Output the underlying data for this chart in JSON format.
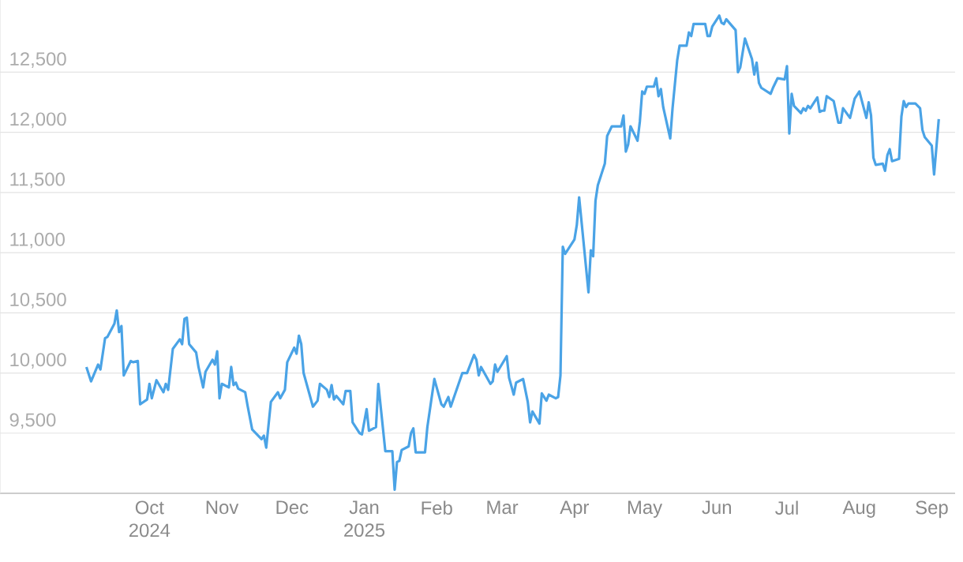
{
  "chart_data": {
    "type": "line",
    "color": "#4aa3e6",
    "grid": "y",
    "xlim": [
      "2024-07-29",
      "2025-09-11"
    ],
    "ylim": [
      9000,
      13100
    ],
    "yticks": [
      {
        "value": 9500,
        "label": "9,500"
      },
      {
        "value": 10000,
        "label": "10,000"
      },
      {
        "value": 10500,
        "label": "10,500"
      },
      {
        "value": 11000,
        "label": "11,000"
      },
      {
        "value": 11500,
        "label": "11,500"
      },
      {
        "value": 12000,
        "label": "12,000"
      },
      {
        "value": 12500,
        "label": "12,500"
      }
    ],
    "xticks": [
      {
        "value": "2024-10-01",
        "label": "Oct 2024"
      },
      {
        "value": "2024-11-01",
        "label": "Nov"
      },
      {
        "value": "2024-12-01",
        "label": "Dec"
      },
      {
        "value": "2025-01-01",
        "label": "Jan 2025"
      },
      {
        "value": "2025-02-01",
        "label": "Feb"
      },
      {
        "value": "2025-03-01",
        "label": "Mar"
      },
      {
        "value": "2025-04-01",
        "label": "Apr"
      },
      {
        "value": "2025-05-01",
        "label": "May"
      },
      {
        "value": "2025-06-01",
        "label": "Jun"
      },
      {
        "value": "2025-07-01",
        "label": "Jul"
      },
      {
        "value": "2025-08-01",
        "label": "Aug"
      },
      {
        "value": "2025-09-01",
        "label": "Sep"
      }
    ],
    "x": [
      "2024-09-04",
      "2024-09-06",
      "2024-09-09",
      "2024-09-10",
      "2024-09-12",
      "2024-09-13",
      "2024-09-16",
      "2024-09-17",
      "2024-09-18",
      "2024-09-19",
      "2024-09-20",
      "2024-09-23",
      "2024-09-24",
      "2024-09-26",
      "2024-09-27",
      "2024-09-30",
      "2024-10-01",
      "2024-10-02",
      "2024-10-04",
      "2024-10-07",
      "2024-10-08",
      "2024-10-09",
      "2024-10-11",
      "2024-10-14",
      "2024-10-15",
      "2024-10-16",
      "2024-10-17",
      "2024-10-18",
      "2024-10-21",
      "2024-10-22",
      "2024-10-24",
      "2024-10-25",
      "2024-10-28",
      "2024-10-29",
      "2024-10-30",
      "2024-10-31",
      "2024-11-01",
      "2024-11-04",
      "2024-11-05",
      "2024-11-06",
      "2024-11-07",
      "2024-11-08",
      "2024-11-11",
      "2024-11-12",
      "2024-11-14",
      "2024-11-18",
      "2024-11-19",
      "2024-11-20",
      "2024-11-22",
      "2024-11-25",
      "2024-11-26",
      "2024-11-28",
      "2024-11-29",
      "2024-12-02",
      "2024-12-03",
      "2024-12-04",
      "2024-12-05",
      "2024-12-06",
      "2024-12-10",
      "2024-12-12",
      "2024-12-13",
      "2024-12-16",
      "2024-12-17",
      "2024-12-18",
      "2024-12-19",
      "2024-12-20",
      "2024-12-23",
      "2024-12-24",
      "2024-12-26",
      "2024-12-27",
      "2024-12-30",
      "2024-12-31",
      "2025-01-02",
      "2025-01-03",
      "2025-01-06",
      "2025-01-07",
      "2025-01-10",
      "2025-01-13",
      "2025-01-14",
      "2025-01-15",
      "2025-01-16",
      "2025-01-17",
      "2025-01-20",
      "2025-01-21",
      "2025-01-22",
      "2025-01-23",
      "2025-01-27",
      "2025-01-28",
      "2025-01-31",
      "2025-02-03",
      "2025-02-04",
      "2025-02-06",
      "2025-02-07",
      "2025-02-12",
      "2025-02-14",
      "2025-02-17",
      "2025-02-18",
      "2025-02-19",
      "2025-02-20",
      "2025-02-24",
      "2025-02-25",
      "2025-02-26",
      "2025-02-27",
      "2025-03-03",
      "2025-03-04",
      "2025-03-06",
      "2025-03-07",
      "2025-03-10",
      "2025-03-12",
      "2025-03-13",
      "2025-03-14",
      "2025-03-17",
      "2025-03-18",
      "2025-03-20",
      "2025-03-21",
      "2025-03-24",
      "2025-03-25",
      "2025-03-26",
      "2025-03-27",
      "2025-03-28",
      "2025-04-01",
      "2025-04-02",
      "2025-04-03",
      "2025-04-07",
      "2025-04-08",
      "2025-04-09",
      "2025-04-10",
      "2025-04-11",
      "2025-04-14",
      "2025-04-15",
      "2025-04-17",
      "2025-04-21",
      "2025-04-22",
      "2025-04-23",
      "2025-04-24",
      "2025-04-25",
      "2025-04-28",
      "2025-04-29",
      "2025-04-30",
      "2025-05-01",
      "2025-05-02",
      "2025-05-05",
      "2025-05-06",
      "2025-05-07",
      "2025-05-08",
      "2025-05-09",
      "2025-05-12",
      "2025-05-13",
      "2025-05-15",
      "2025-05-16",
      "2025-05-19",
      "2025-05-20",
      "2025-05-21",
      "2025-05-22",
      "2025-05-27",
      "2025-05-28",
      "2025-05-29",
      "2025-05-30",
      "2025-06-02",
      "2025-06-03",
      "2025-06-04",
      "2025-06-05",
      "2025-06-09",
      "2025-06-10",
      "2025-06-11",
      "2025-06-13",
      "2025-06-16",
      "2025-06-17",
      "2025-06-18",
      "2025-06-19",
      "2025-06-20",
      "2025-06-24",
      "2025-06-25",
      "2025-06-27",
      "2025-06-30",
      "2025-07-01",
      "2025-07-02",
      "2025-07-03",
      "2025-07-04",
      "2025-07-07",
      "2025-07-08",
      "2025-07-09",
      "2025-07-10",
      "2025-07-11",
      "2025-07-14",
      "2025-07-15",
      "2025-07-16",
      "2025-07-17",
      "2025-07-18",
      "2025-07-21",
      "2025-07-23",
      "2025-07-24",
      "2025-07-25",
      "2025-07-28",
      "2025-07-30",
      "2025-08-01",
      "2025-08-04",
      "2025-08-05",
      "2025-08-06",
      "2025-08-07",
      "2025-08-08",
      "2025-08-11",
      "2025-08-12",
      "2025-08-13",
      "2025-08-14",
      "2025-08-15",
      "2025-08-18",
      "2025-08-19",
      "2025-08-20",
      "2025-08-21",
      "2025-08-22",
      "2025-08-25",
      "2025-08-27",
      "2025-08-28",
      "2025-08-29",
      "2025-09-01",
      "2025-09-02",
      "2025-09-04"
    ],
    "values": [
      10050,
      9930,
      10070,
      10030,
      10290,
      10300,
      10410,
      10520,
      10340,
      10390,
      9980,
      10100,
      10090,
      10100,
      9740,
      9780,
      9910,
      9790,
      9940,
      9840,
      9910,
      9860,
      10200,
      10280,
      10240,
      10450,
      10460,
      10240,
      10170,
      10050,
      9880,
      10010,
      10110,
      10070,
      10180,
      9790,
      9910,
      9880,
      10050,
      9900,
      9920,
      9870,
      9840,
      9730,
      9530,
      9450,
      9480,
      9380,
      9760,
      9840,
      9790,
      9860,
      10090,
      10210,
      10160,
      10310,
      10240,
      10000,
      9720,
      9770,
      9910,
      9860,
      9800,
      9900,
      9780,
      9810,
      9740,
      9850,
      9850,
      9590,
      9500,
      9490,
      9700,
      9520,
      9550,
      9910,
      9350,
      9350,
      9030,
      9260,
      9270,
      9360,
      9390,
      9500,
      9540,
      9340,
      9340,
      9550,
      9950,
      9740,
      9720,
      9800,
      9720,
      10000,
      10000,
      10150,
      10110,
      9980,
      10050,
      9910,
      9930,
      10070,
      10010,
      10140,
      9960,
      9820,
      9920,
      9950,
      9760,
      9590,
      9680,
      9580,
      9830,
      9770,
      9820,
      9790,
      9800,
      9980,
      11050,
      10990,
      11110,
      11230,
      11460,
      10670,
      11020,
      10970,
      11430,
      11560,
      11740,
      11970,
      12050,
      12050,
      12140,
      11840,
      11900,
      12050,
      11930,
      12090,
      12340,
      12320,
      12380,
      12380,
      12450,
      12300,
      12360,
      12210,
      11950,
      12200,
      12600,
      12720,
      12720,
      12830,
      12800,
      12900,
      12900,
      12800,
      12800,
      12880,
      12970,
      12910,
      12900,
      12940,
      12850,
      12500,
      12540,
      12780,
      12610,
      12480,
      12580,
      12410,
      12370,
      12320,
      12370,
      12450,
      12440,
      12550,
      11990,
      12320,
      12220,
      12160,
      12200,
      12180,
      12220,
      12200,
      12290,
      12170,
      12180,
      12180,
      12300,
      12260,
      12080,
      12080,
      12200,
      12120,
      12280,
      12340,
      12120,
      12250,
      12140,
      11790,
      11730,
      11740,
      11680,
      11810,
      11860,
      11760,
      11780,
      12130,
      12260,
      12210,
      12240,
      12240,
      12200,
      12020,
      11960,
      11890,
      11650,
      12110
    ]
  }
}
